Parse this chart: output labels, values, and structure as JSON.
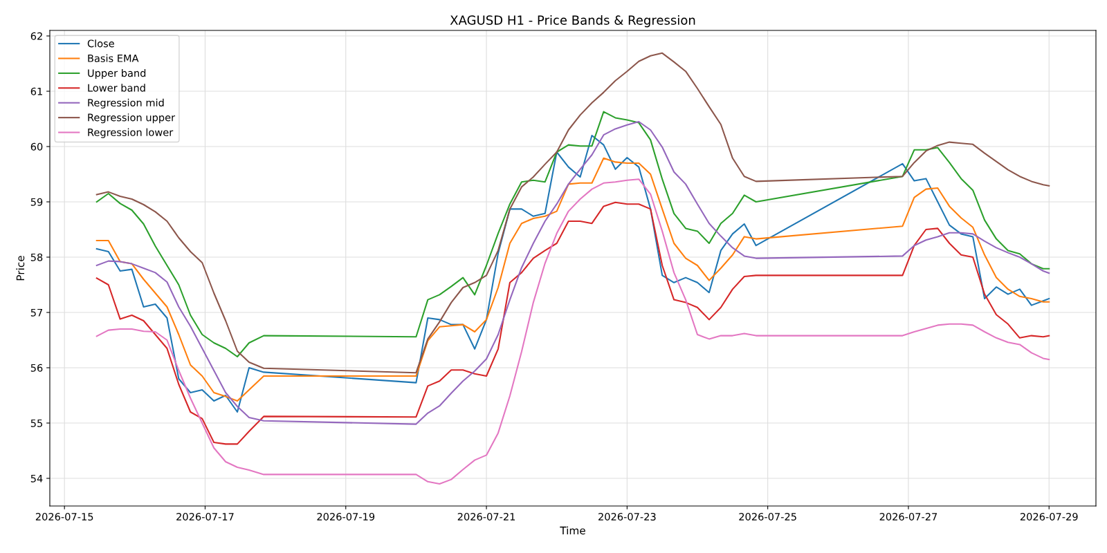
{
  "chart_data": {
    "type": "line",
    "title": "XAGUSD H1 - Price Bands & Regression",
    "xlabel": "Time",
    "ylabel": "Price",
    "x": [
      "2026-07-15T11:00",
      "2026-07-15T15:00",
      "2026-07-15T19:00",
      "2026-07-15T23:00",
      "2026-07-16T03:00",
      "2026-07-16T07:00",
      "2026-07-16T11:00",
      "2026-07-16T15:00",
      "2026-07-16T19:00",
      "2026-07-16T23:00",
      "2026-07-17T03:00",
      "2026-07-17T07:00",
      "2026-07-17T11:00",
      "2026-07-17T15:00",
      "2026-07-17T20:00",
      "2026-07-20T00:00",
      "2026-07-20T04:00",
      "2026-07-20T08:00",
      "2026-07-20T12:00",
      "2026-07-20T16:00",
      "2026-07-20T20:00",
      "2026-07-21T00:00",
      "2026-07-21T04:00",
      "2026-07-21T08:00",
      "2026-07-21T12:00",
      "2026-07-21T16:00",
      "2026-07-21T20:00",
      "2026-07-22T00:00",
      "2026-07-22T04:00",
      "2026-07-22T08:00",
      "2026-07-22T12:00",
      "2026-07-22T16:00",
      "2026-07-22T20:00",
      "2026-07-23T00:00",
      "2026-07-23T04:00",
      "2026-07-23T08:00",
      "2026-07-23T12:00",
      "2026-07-23T16:00",
      "2026-07-23T20:00",
      "2026-07-24T00:00",
      "2026-07-24T04:00",
      "2026-07-24T08:00",
      "2026-07-24T12:00",
      "2026-07-24T16:00",
      "2026-07-24T20:00",
      "2026-07-26T22:00",
      "2026-07-27T02:00",
      "2026-07-27T06:00",
      "2026-07-27T10:00",
      "2026-07-27T14:00",
      "2026-07-27T18:00",
      "2026-07-27T22:00",
      "2026-07-28T02:00",
      "2026-07-28T06:00",
      "2026-07-28T10:00",
      "2026-07-28T14:00",
      "2026-07-28T18:00",
      "2026-07-28T22:00",
      "2026-07-29T00:00"
    ],
    "series": [
      {
        "name": "Close",
        "color": "#1f77b4",
        "values": [
          58.15,
          58.1,
          57.75,
          57.78,
          57.1,
          57.15,
          56.9,
          55.8,
          55.55,
          55.6,
          55.4,
          55.5,
          55.2,
          56.0,
          55.92,
          55.73,
          56.9,
          56.87,
          56.78,
          56.78,
          56.34,
          56.87,
          58.07,
          58.87,
          58.87,
          58.74,
          58.79,
          59.9,
          59.63,
          59.45,
          60.2,
          60.03,
          59.59,
          59.8,
          59.63,
          58.87,
          57.67,
          57.54,
          57.63,
          57.54,
          57.36,
          58.12,
          58.42,
          58.6,
          58.21,
          59.69,
          59.38,
          59.42,
          59.0,
          58.58,
          58.42,
          58.37,
          57.25,
          57.46,
          57.33,
          57.42,
          57.13,
          57.21,
          57.25
        ]
      },
      {
        "name": "Basis EMA",
        "color": "#ff7f0e",
        "values": [
          58.3,
          58.3,
          57.92,
          57.88,
          57.6,
          57.35,
          57.1,
          56.6,
          56.05,
          55.85,
          55.55,
          55.48,
          55.4,
          55.6,
          55.85,
          55.85,
          56.49,
          56.74,
          56.76,
          56.78,
          56.65,
          56.87,
          57.45,
          58.25,
          58.61,
          58.7,
          58.74,
          58.83,
          59.32,
          59.34,
          59.34,
          59.79,
          59.72,
          59.7,
          59.7,
          59.5,
          58.87,
          58.25,
          57.98,
          57.85,
          57.58,
          57.8,
          58.04,
          58.37,
          58.33,
          58.56,
          59.08,
          59.23,
          59.25,
          58.92,
          58.71,
          58.54,
          58.04,
          57.63,
          57.42,
          57.29,
          57.25,
          57.19,
          57.19
        ]
      },
      {
        "name": "Upper band",
        "color": "#2ca02c",
        "values": [
          59.0,
          59.15,
          58.97,
          58.85,
          58.6,
          58.2,
          57.85,
          57.5,
          56.95,
          56.6,
          56.45,
          56.35,
          56.2,
          56.45,
          56.58,
          56.56,
          57.23,
          57.32,
          57.47,
          57.63,
          57.32,
          57.85,
          58.43,
          58.96,
          59.36,
          59.39,
          59.36,
          59.9,
          60.03,
          60.01,
          60.01,
          60.63,
          60.52,
          60.48,
          60.43,
          60.12,
          59.41,
          58.79,
          58.52,
          58.47,
          58.25,
          58.61,
          58.79,
          59.12,
          59.0,
          59.46,
          59.94,
          59.94,
          59.98,
          59.71,
          59.42,
          59.21,
          58.67,
          58.33,
          58.12,
          58.06,
          57.88,
          57.79,
          57.79
        ]
      },
      {
        "name": "Lower band",
        "color": "#d62728",
        "values": [
          57.62,
          57.5,
          56.88,
          56.95,
          56.85,
          56.6,
          56.35,
          55.7,
          55.2,
          55.08,
          54.65,
          54.62,
          54.62,
          54.85,
          55.12,
          55.11,
          55.67,
          55.76,
          55.96,
          55.96,
          55.89,
          55.85,
          56.34,
          57.54,
          57.72,
          57.98,
          58.12,
          58.25,
          58.65,
          58.65,
          58.61,
          58.92,
          58.99,
          58.96,
          58.96,
          58.87,
          57.85,
          57.23,
          57.18,
          57.09,
          56.87,
          57.09,
          57.42,
          57.65,
          57.67,
          57.67,
          58.21,
          58.5,
          58.52,
          58.25,
          58.04,
          58.0,
          57.33,
          56.96,
          56.79,
          56.54,
          56.58,
          56.56,
          56.58
        ]
      },
      {
        "name": "Regression mid",
        "color": "#9467bd",
        "values": [
          57.85,
          57.93,
          57.92,
          57.88,
          57.8,
          57.72,
          57.55,
          57.1,
          56.75,
          56.35,
          55.95,
          55.55,
          55.3,
          55.1,
          55.04,
          54.98,
          55.18,
          55.31,
          55.54,
          55.76,
          55.94,
          56.16,
          56.6,
          57.23,
          57.81,
          58.25,
          58.65,
          58.96,
          59.32,
          59.59,
          59.85,
          60.21,
          60.32,
          60.39,
          60.45,
          60.3,
          59.99,
          59.54,
          59.32,
          58.96,
          58.61,
          58.38,
          58.17,
          58.02,
          57.98,
          58.02,
          58.21,
          58.31,
          58.37,
          58.44,
          58.44,
          58.42,
          58.29,
          58.17,
          58.08,
          58.0,
          57.88,
          57.75,
          57.71
        ]
      },
      {
        "name": "Regression upper",
        "color": "#8c564b",
        "values": [
          59.13,
          59.18,
          59.1,
          59.05,
          58.95,
          58.82,
          58.65,
          58.35,
          58.1,
          57.9,
          57.35,
          56.85,
          56.3,
          56.1,
          55.99,
          55.91,
          56.52,
          56.83,
          57.18,
          57.45,
          57.54,
          57.67,
          58.12,
          58.87,
          59.27,
          59.45,
          59.68,
          59.9,
          60.3,
          60.57,
          60.79,
          60.98,
          61.19,
          61.36,
          61.54,
          61.64,
          61.69,
          61.53,
          61.36,
          61.05,
          60.72,
          60.4,
          59.79,
          59.46,
          59.37,
          59.46,
          59.71,
          59.92,
          60.02,
          60.08,
          60.06,
          60.04,
          59.88,
          59.73,
          59.58,
          59.46,
          59.37,
          59.31,
          59.29
        ]
      },
      {
        "name": "Regression lower",
        "color": "#e377c2",
        "values": [
          56.57,
          56.68,
          56.7,
          56.7,
          56.66,
          56.65,
          56.5,
          55.95,
          55.45,
          55.0,
          54.55,
          54.3,
          54.2,
          54.15,
          54.07,
          54.07,
          53.94,
          53.9,
          53.98,
          54.16,
          54.33,
          54.42,
          54.82,
          55.49,
          56.29,
          57.18,
          57.89,
          58.43,
          58.83,
          59.05,
          59.23,
          59.34,
          59.36,
          59.39,
          59.41,
          59.14,
          58.47,
          57.72,
          57.23,
          56.6,
          56.52,
          56.58,
          56.58,
          56.62,
          56.58,
          56.58,
          56.65,
          56.71,
          56.77,
          56.79,
          56.79,
          56.77,
          56.65,
          56.54,
          56.46,
          56.42,
          56.27,
          56.17,
          56.15
        ]
      }
    ],
    "xlim": [
      "2026-07-14T19:00",
      "2026-07-29T16:00"
    ],
    "xticks": [
      "2026-07-15",
      "2026-07-17",
      "2026-07-19",
      "2026-07-21",
      "2026-07-23",
      "2026-07-25",
      "2026-07-27",
      "2026-07-29"
    ],
    "ylim": [
      53.5,
      62.1
    ],
    "yticks": [
      54,
      55,
      56,
      57,
      58,
      59,
      60,
      61,
      62
    ],
    "grid": true,
    "legend": "top left",
    "marker": "none",
    "line_style": "solid"
  }
}
